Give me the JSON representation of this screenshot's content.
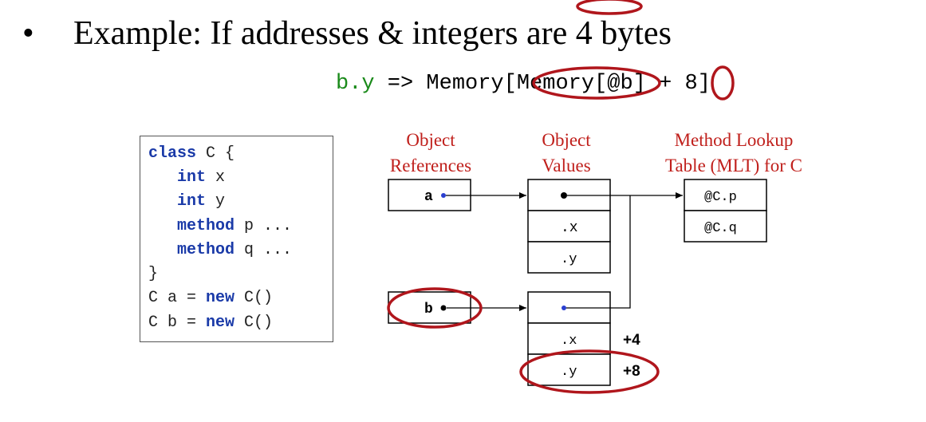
{
  "slide": {
    "bullet_glyph": "•",
    "bullet_text": "Example: If addresses & integers are 4 bytes",
    "expression": {
      "part1": "b.y",
      "part2": " => Memory[",
      "part3": "Memory[@b]",
      "part4": " + ",
      "part5": "8",
      "part6": "]"
    }
  },
  "code": {
    "lines": [
      {
        "kw": "class",
        "rest": " C {"
      },
      {
        "kw": "int",
        "rest": " x"
      },
      {
        "kw": "int",
        "rest": " y"
      },
      {
        "kw": "method",
        "rest": " p ..."
      },
      {
        "kw": "method",
        "rest": " q ..."
      },
      {
        "kw": "",
        "rest": "}"
      },
      {
        "pre": "C a = ",
        "kw": "new",
        "rest": " C()"
      },
      {
        "pre": "C b = ",
        "kw": "new",
        "rest": " C()"
      }
    ]
  },
  "diagram": {
    "headers": {
      "refs": [
        "Object",
        "References"
      ],
      "values": [
        "Object",
        "Values"
      ],
      "mlt": [
        "Method Lookup",
        "Table (MLT) for C"
      ]
    },
    "ref_a": "a",
    "ref_b": "b",
    "field_x": ".x",
    "field_y": ".y",
    "mlt_p": "@C.p",
    "mlt_q": "@C.q",
    "offset_4": "+4",
    "offset_8": "+8"
  },
  "colors": {
    "highlight": "#b0161c",
    "header": "#c0201c",
    "keyword": "#1a3aa8",
    "green": "#1a8a1a",
    "dot_blue": "#2a3fd0"
  }
}
